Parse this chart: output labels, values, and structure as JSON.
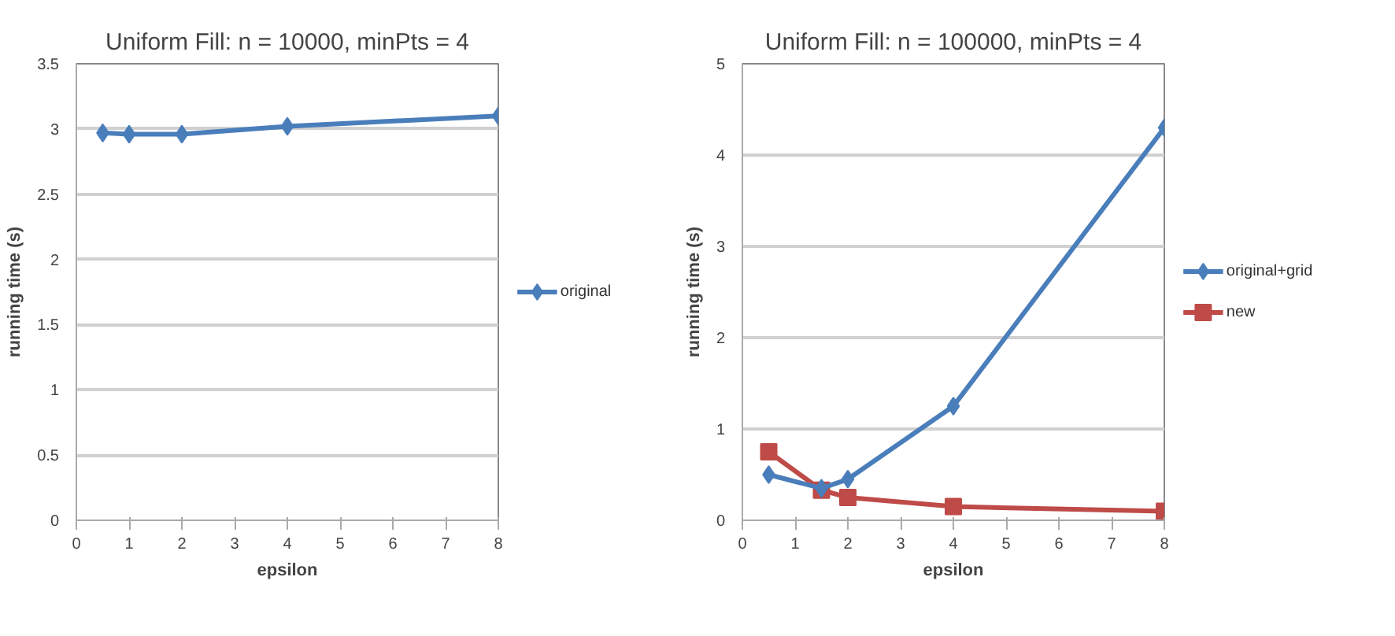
{
  "chart_data": [
    {
      "type": "line",
      "title": "Uniform Fill: n = 10000, minPts = 4",
      "xlabel": "epsilon",
      "ylabel": "running time (s)",
      "xlim": [
        0,
        8
      ],
      "xticks": [
        0,
        1,
        2,
        3,
        4,
        5,
        6,
        7,
        8
      ],
      "ylim": [
        0,
        3.5
      ],
      "yticks": [
        0,
        0.5,
        1,
        1.5,
        2,
        2.5,
        3,
        3.5
      ],
      "grid": "y",
      "legend": "right",
      "series": [
        {
          "name": "original",
          "color": "#4a7ebb",
          "marker": "diamond",
          "x": [
            0.5,
            1,
            2,
            4,
            8
          ],
          "values": [
            2.97,
            2.96,
            2.96,
            3.02,
            3.1
          ]
        }
      ]
    },
    {
      "type": "line",
      "title": "Uniform Fill: n = 100000, minPts = 4",
      "xlabel": "epsilon",
      "ylabel": "running time (s)",
      "xlim": [
        0,
        8
      ],
      "xticks": [
        0,
        1,
        2,
        3,
        4,
        5,
        6,
        7,
        8
      ],
      "ylim": [
        0,
        5
      ],
      "yticks": [
        0,
        1,
        2,
        3,
        4,
        5
      ],
      "grid": "y",
      "legend": "right",
      "series": [
        {
          "name": "original+grid",
          "color": "#4a7ebb",
          "marker": "diamond",
          "x": [
            0.5,
            1.5,
            2,
            4,
            8
          ],
          "values": [
            0.5,
            0.35,
            0.45,
            1.25,
            4.3
          ]
        },
        {
          "name": "new",
          "color": "#be4b48",
          "marker": "square",
          "x": [
            0.5,
            1.5,
            2,
            4,
            8
          ],
          "values": [
            0.75,
            0.33,
            0.25,
            0.15,
            0.1
          ]
        }
      ]
    }
  ]
}
